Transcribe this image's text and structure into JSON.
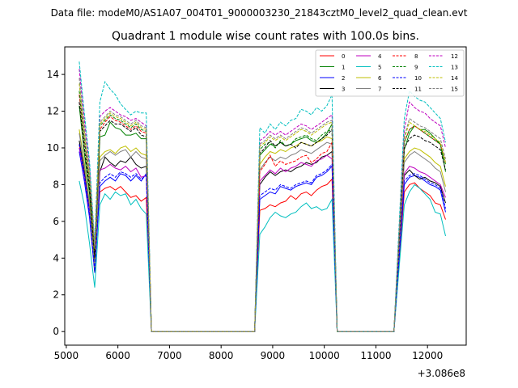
{
  "chart_data": {
    "type": "line",
    "suptitle": "Data file: modeM0/AS1A07_004T01_9000003230_21843cztM0_level2_quad_clean.evt",
    "title": "Quadrant 1 module wise count rates with 100.0s bins.",
    "xlabel": "",
    "ylabel": "",
    "x_offset_label": "+3.086e8",
    "xlim": [
      4970,
      12750
    ],
    "ylim": [
      -0.74,
      15.5
    ],
    "xticks": [
      5000,
      6000,
      7000,
      8000,
      9000,
      10000,
      11000,
      12000
    ],
    "yticks": [
      0,
      2,
      4,
      6,
      8,
      10,
      12,
      14
    ],
    "grid": false,
    "legend_position": "top-right",
    "legend_columns": 4,
    "segments": [
      {
        "x_start": 5250,
        "x_end": 6550,
        "step": 100
      },
      {
        "x_start": 8750,
        "x_end": 10150,
        "step": 100
      },
      {
        "x_start": 11550,
        "x_end": 12350,
        "step": 100
      }
    ],
    "gap_points": [
      {
        "x": [
          6650,
          6750,
          8650
        ],
        "y": 0
      },
      {
        "x": [
          10250,
          11350
        ],
        "y": 0
      }
    ],
    "series": [
      {
        "name": "0",
        "color": "#ff0000",
        "dash": "solid",
        "y": [
          10.2,
          8.6,
          6.6,
          4.0,
          7.6,
          7.8,
          7.9,
          7.7,
          7.9,
          7.6,
          7.3,
          7.4,
          7.1,
          7.3,
          6.6,
          6.7,
          6.9,
          6.8,
          7.0,
          7.1,
          7.4,
          7.2,
          7.5,
          7.6,
          7.4,
          7.7,
          7.9,
          8.0,
          8.3,
          7.6,
          8.0,
          8.1,
          7.8,
          7.6,
          7.4,
          7.0,
          6.9,
          6.1
        ]
      },
      {
        "name": "1",
        "color": "#008000",
        "dash": "solid",
        "y": [
          12.3,
          9.7,
          7.5,
          3.7,
          10.6,
          10.7,
          11.4,
          11.1,
          11.0,
          10.7,
          10.7,
          10.8,
          10.5,
          10.5,
          9.6,
          9.9,
          10.2,
          10.1,
          10.3,
          10.1,
          10.2,
          10.4,
          10.5,
          10.6,
          10.4,
          10.3,
          10.5,
          10.8,
          11.3,
          9.9,
          10.8,
          11.2,
          11.0,
          11.0,
          10.8,
          10.5,
          10.2,
          8.7
        ]
      },
      {
        "name": "2",
        "color": "#0000ff",
        "dash": "solid",
        "y": [
          9.8,
          8.2,
          6.2,
          3.2,
          7.9,
          8.2,
          8.4,
          8.2,
          8.6,
          8.5,
          8.2,
          8.5,
          8.2,
          8.6,
          7.2,
          7.4,
          7.6,
          7.5,
          7.9,
          7.8,
          7.7,
          7.9,
          8.0,
          8.1,
          8.0,
          8.4,
          8.5,
          8.7,
          9.0,
          8.0,
          8.4,
          8.5,
          8.4,
          8.2,
          8.0,
          7.9,
          7.7,
          6.5
        ]
      },
      {
        "name": "3",
        "color": "#000000",
        "dash": "solid",
        "y": [
          10.4,
          8.7,
          6.8,
          3.3,
          8.7,
          9.5,
          9.2,
          9.0,
          9.3,
          9.2,
          9.5,
          9.1,
          8.9,
          9.0,
          8.0,
          8.4,
          8.7,
          8.5,
          8.7,
          8.8,
          8.7,
          8.9,
          9.0,
          9.2,
          9.1,
          9.2,
          9.5,
          9.6,
          9.8,
          8.5,
          8.8,
          8.5,
          8.3,
          8.4,
          8.2,
          8.1,
          7.9,
          7.0
        ]
      },
      {
        "name": "4",
        "color": "#bf00bf",
        "dash": "solid",
        "y": [
          10.0,
          8.5,
          6.5,
          3.4,
          8.8,
          8.9,
          9.1,
          8.9,
          8.8,
          9.0,
          8.7,
          8.9,
          8.4,
          8.5,
          8.2,
          8.5,
          8.8,
          8.6,
          8.9,
          8.7,
          8.9,
          9.0,
          9.2,
          9.1,
          9.0,
          9.3,
          9.4,
          9.6,
          9.4,
          8.6,
          9.0,
          8.9,
          8.7,
          8.6,
          8.4,
          8.2,
          8.0,
          7.3
        ]
      },
      {
        "name": "5",
        "color": "#00bfbf",
        "dash": "solid",
        "y": [
          8.2,
          6.9,
          4.8,
          2.4,
          6.9,
          7.5,
          7.2,
          7.6,
          7.4,
          7.5,
          6.9,
          7.2,
          6.7,
          6.4,
          5.3,
          5.7,
          6.2,
          6.5,
          6.3,
          6.2,
          6.4,
          6.5,
          6.8,
          7.0,
          6.7,
          6.8,
          6.6,
          6.7,
          7.2,
          6.9,
          7.6,
          8.0,
          7.8,
          7.5,
          7.2,
          6.5,
          6.4,
          5.2
        ]
      },
      {
        "name": "6",
        "color": "#bfbf00",
        "dash": "solid",
        "y": [
          11.0,
          9.2,
          7.0,
          3.5,
          9.5,
          9.8,
          9.9,
          9.7,
          10.0,
          10.1,
          9.8,
          10.0,
          9.7,
          9.6,
          9.1,
          9.5,
          9.8,
          9.7,
          9.9,
          9.8,
          10.0,
          10.1,
          10.3,
          10.2,
          10.1,
          10.3,
          10.4,
          10.6,
          10.5,
          9.4,
          9.8,
          10.0,
          9.9,
          9.7,
          9.5,
          9.2,
          9.0,
          7.9
        ]
      },
      {
        "name": "7",
        "color": "#808080",
        "dash": "solid",
        "y": [
          10.8,
          9.0,
          6.9,
          3.4,
          9.3,
          9.6,
          9.8,
          9.6,
          9.8,
          9.9,
          9.5,
          9.8,
          9.5,
          9.4,
          8.8,
          9.2,
          9.5,
          9.3,
          9.5,
          9.4,
          9.6,
          9.7,
          9.9,
          9.8,
          9.7,
          9.9,
          10.1,
          10.3,
          10.2,
          9.2,
          9.6,
          9.8,
          9.6,
          9.4,
          9.2,
          8.9,
          8.7,
          7.6
        ]
      },
      {
        "name": "8",
        "color": "#ff0000",
        "dash": "dashed",
        "y": [
          12.9,
          10.4,
          8.1,
          4.3,
          11.0,
          11.4,
          11.7,
          11.5,
          11.4,
          11.2,
          11.0,
          11.2,
          10.9,
          10.8,
          8.7,
          9.1,
          9.6,
          9.0,
          9.3,
          9.1,
          9.2,
          9.3,
          9.5,
          9.6,
          9.2,
          9.4,
          9.7,
          9.8,
          10.3,
          10.3,
          11.0,
          11.2,
          11.0,
          10.8,
          10.6,
          10.4,
          10.2,
          9.2
        ]
      },
      {
        "name": "9",
        "color": "#008000",
        "dash": "dashed",
        "y": [
          13.1,
          10.5,
          8.2,
          4.4,
          11.2,
          11.5,
          11.8,
          11.6,
          11.5,
          11.3,
          11.1,
          11.3,
          11.0,
          10.9,
          9.9,
          10.2,
          10.3,
          10.0,
          10.4,
          10.1,
          10.2,
          10.5,
          10.6,
          10.7,
          10.5,
          10.4,
          10.7,
          10.9,
          11.0,
          10.3,
          11.0,
          11.2,
          11.0,
          10.8,
          10.6,
          10.4,
          10.2,
          9.1
        ]
      },
      {
        "name": "10",
        "color": "#0000ff",
        "dash": "dashed",
        "y": [
          10.2,
          8.5,
          6.5,
          3.3,
          8.1,
          8.4,
          8.6,
          8.4,
          8.7,
          8.6,
          8.4,
          8.6,
          8.3,
          8.5,
          7.4,
          7.6,
          7.8,
          7.7,
          8.0,
          7.9,
          7.8,
          8.0,
          8.1,
          8.2,
          8.1,
          8.5,
          8.6,
          8.8,
          9.1,
          8.2,
          8.5,
          8.6,
          8.5,
          8.3,
          8.1,
          8.0,
          7.8,
          6.7
        ]
      },
      {
        "name": "11",
        "color": "#000000",
        "dash": "dashed",
        "y": [
          12.5,
          10.0,
          7.8,
          4.0,
          10.9,
          11.2,
          11.5,
          11.3,
          11.3,
          11.1,
          10.9,
          11.1,
          10.7,
          10.6,
          9.7,
          10.0,
          10.4,
          10.1,
          10.3,
          10.1,
          10.2,
          10.0,
          10.3,
          10.2,
          10.1,
          10.3,
          10.5,
          10.7,
          11.0,
          10.0,
          10.5,
          10.7,
          10.6,
          10.4,
          10.3,
          10.1,
          9.9,
          8.8
        ]
      },
      {
        "name": "12",
        "color": "#bf00bf",
        "dash": "dashed",
        "y": [
          14.3,
          11.5,
          9.0,
          4.6,
          11.7,
          12.0,
          12.2,
          12.0,
          11.8,
          11.7,
          11.5,
          11.6,
          11.4,
          11.2,
          10.4,
          10.6,
          10.9,
          10.7,
          10.9,
          10.7,
          10.9,
          11.1,
          11.3,
          11.2,
          11.0,
          11.2,
          11.4,
          11.6,
          11.8,
          11.0,
          12.5,
          12.2,
          12.0,
          11.9,
          11.6,
          11.4,
          11.2,
          10.0
        ]
      },
      {
        "name": "13",
        "color": "#00bfbf",
        "dash": "dashed",
        "y": [
          14.7,
          11.9,
          9.3,
          4.8,
          12.5,
          13.6,
          13.2,
          12.9,
          12.4,
          12.1,
          11.8,
          12.0,
          11.9,
          11.9,
          11.1,
          10.8,
          11.3,
          11.0,
          11.4,
          11.2,
          11.5,
          11.6,
          12.1,
          12.0,
          11.8,
          12.2,
          12.0,
          12.3,
          12.9,
          11.6,
          13.1,
          12.8,
          12.6,
          12.5,
          12.2,
          11.9,
          11.6,
          10.3
        ]
      },
      {
        "name": "14",
        "color": "#bfbf00",
        "dash": "dashed",
        "y": [
          13.5,
          10.9,
          8.5,
          4.5,
          11.3,
          11.6,
          11.9,
          11.7,
          11.6,
          11.4,
          11.2,
          11.4,
          11.1,
          11.0,
          10.1,
          10.3,
          10.6,
          10.4,
          10.6,
          10.4,
          10.6,
          10.8,
          11.0,
          10.9,
          10.7,
          10.9,
          11.1,
          11.3,
          11.4,
          10.5,
          11.4,
          11.2,
          11.0,
          10.9,
          10.7,
          10.5,
          10.3,
          9.2
        ]
      },
      {
        "name": "15",
        "color": "#808080",
        "dash": "dashed",
        "y": [
          13.8,
          11.1,
          8.7,
          4.6,
          11.4,
          11.7,
          12.0,
          11.8,
          11.7,
          11.5,
          11.3,
          11.5,
          11.2,
          11.1,
          10.2,
          10.4,
          10.7,
          10.5,
          10.7,
          10.5,
          10.7,
          10.9,
          11.1,
          11.0,
          10.8,
          11.0,
          11.2,
          11.4,
          11.5,
          10.6,
          11.6,
          11.4,
          11.2,
          11.1,
          10.9,
          10.7,
          10.5,
          9.4
        ]
      }
    ]
  }
}
